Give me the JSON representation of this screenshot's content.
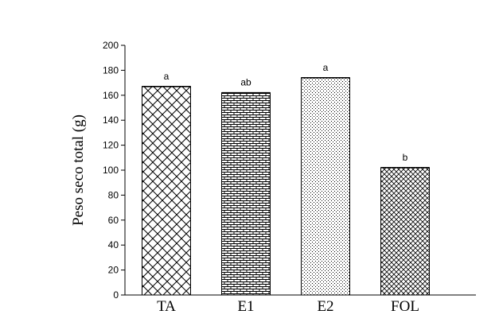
{
  "chart_data": {
    "type": "bar",
    "title": "",
    "xlabel": "",
    "ylabel": "Peso seco total (g)",
    "ylim": [
      0,
      200
    ],
    "yticks": [
      0,
      20,
      40,
      60,
      80,
      100,
      120,
      140,
      160,
      180,
      200
    ],
    "categories": [
      "TA",
      "E1",
      "E2",
      "FOL"
    ],
    "values": [
      167,
      162,
      174,
      102
    ],
    "significance_letters": [
      "a",
      "ab",
      "a",
      "b"
    ],
    "patterns": [
      "crosshatch",
      "brick",
      "dots-fine",
      "crosshatch-fine"
    ],
    "bar_fill_color": "#000000",
    "background_color": "#ffffff",
    "grid": false,
    "legend": "none"
  }
}
